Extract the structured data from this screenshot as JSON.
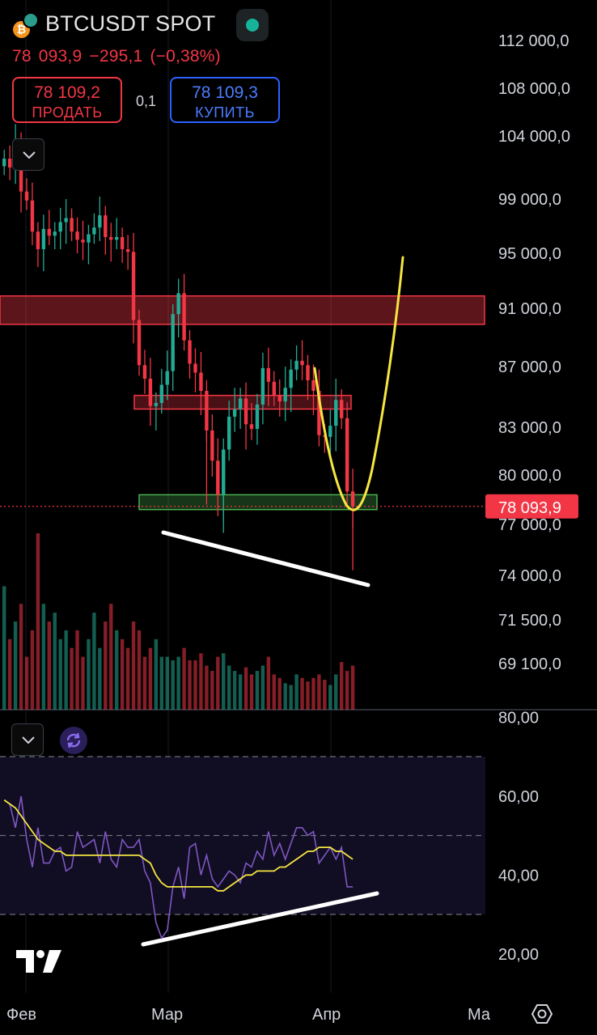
{
  "header": {
    "symbol": "BTCUSDT SPOT",
    "coin_letter": "₿",
    "last_price": "78 093,9",
    "change": "−295,1",
    "change_pct": "(−0,38%)",
    "sell_price": "78 109,2",
    "sell_label": "ПРОДАТЬ",
    "buy_price": "78 109,3",
    "buy_label": "КУПИТЬ",
    "quantity": "0,1"
  },
  "colors": {
    "up": "#22ab94",
    "down": "#f23645",
    "rsi": "#7e57c2",
    "rsi_ma": "#f5e642",
    "resistance_zone": "#f23645",
    "support_zone": "#4caf50",
    "annotation_curve": "#f5e642",
    "annotation_lines": "#ffffff"
  },
  "chart_data": [
    {
      "type": "candlestick",
      "title": "",
      "price_axis_labels": [
        "112 000,0",
        "108 000,0",
        "104 000,0",
        "99 000,0",
        "95 000,0",
        "91 000,0",
        "87 000,0",
        "83 000,0",
        "80 000,0",
        "77 000,0",
        "74 000,0",
        "71 500,0",
        "69 100,0"
      ],
      "x_tick_labels": [
        "Фев",
        "Мар",
        "Апр",
        "Ма"
      ],
      "last_price_label": "78 093,9",
      "last_price": 78093.9,
      "ylim": [
        67500,
        114000
      ],
      "zones": [
        {
          "name": "resistance",
          "from": 89900,
          "to": 91900
        },
        {
          "name": "mid-resistance",
          "from": 84200,
          "to": 85100
        },
        {
          "name": "support",
          "from": 77900,
          "to": 78800
        }
      ],
      "close_approx": [
        102200,
        101500,
        103600,
        99600,
        98900,
        96600,
        95300,
        96800,
        96300,
        96600,
        97300,
        97600,
        96600,
        96000,
        95800,
        96400,
        96900,
        97800,
        96200,
        96000,
        96200,
        95300,
        95100,
        90200,
        87100,
        86200,
        84400,
        84600,
        85800,
        86700,
        90600,
        92100,
        88800,
        87200,
        86600,
        85400,
        82800,
        80900,
        78800,
        81600,
        83700,
        84200,
        84900,
        83200,
        82900,
        84500,
        86900,
        86000,
        85100,
        84700,
        85600,
        86800,
        87400,
        87100,
        86100,
        85400,
        82500,
        82400,
        83100,
        84800,
        83600,
        79000,
        78100
      ],
      "volume_relative": [
        0.7,
        0.4,
        0.5,
        0.6,
        0.3,
        0.45,
        1.0,
        0.6,
        0.5,
        0.55,
        0.4,
        0.45,
        0.35,
        0.45,
        0.3,
        0.4,
        0.55,
        0.35,
        0.5,
        0.6,
        0.45,
        0.4,
        0.35,
        0.5,
        0.45,
        0.3,
        0.35,
        0.4,
        0.3,
        0.3,
        0.28,
        0.3,
        0.35,
        0.28,
        0.28,
        0.32,
        0.25,
        0.22,
        0.3,
        0.32,
        0.25,
        0.22,
        0.2,
        0.24,
        0.2,
        0.22,
        0.25,
        0.3,
        0.2,
        0.18,
        0.15,
        0.14,
        0.2,
        0.18,
        0.16,
        0.18,
        0.2,
        0.17,
        0.14,
        0.2,
        0.27,
        0.22,
        0.25
      ]
    },
    {
      "type": "line",
      "title": "",
      "axis_labels": [
        "80,00",
        "60,00",
        "40,00",
        "20,00"
      ],
      "ylim": [
        20,
        82
      ],
      "levels": [
        70,
        50,
        30
      ],
      "series": [
        {
          "values": [
            59,
            58,
            52,
            60,
            49,
            42,
            52,
            43,
            43,
            46,
            47,
            41,
            42,
            51,
            47,
            48,
            49,
            43,
            51,
            44,
            42,
            49,
            47,
            47,
            49,
            41,
            38,
            28,
            24,
            26,
            37,
            42,
            34,
            47,
            48,
            40,
            45,
            39,
            37,
            39,
            41,
            40,
            38,
            43,
            42,
            46,
            44,
            51,
            45,
            48,
            44,
            48,
            52,
            52,
            50,
            51,
            43,
            45,
            47,
            44,
            47,
            37,
            37
          ]
        },
        {
          "values": [
            59,
            58,
            57,
            55,
            53,
            51,
            49,
            48,
            47,
            46,
            46,
            45,
            45,
            45,
            45,
            45,
            45,
            45,
            45,
            45,
            45,
            45,
            45,
            45,
            45,
            44,
            43,
            40,
            38,
            37,
            37,
            37,
            37,
            37,
            37,
            37,
            37,
            37,
            36,
            36,
            37,
            38,
            39,
            40,
            40,
            41,
            41,
            41,
            41,
            42,
            42,
            43,
            44,
            45,
            46,
            46,
            47,
            47,
            47,
            46,
            46,
            45,
            44
          ]
        }
      ]
    }
  ]
}
